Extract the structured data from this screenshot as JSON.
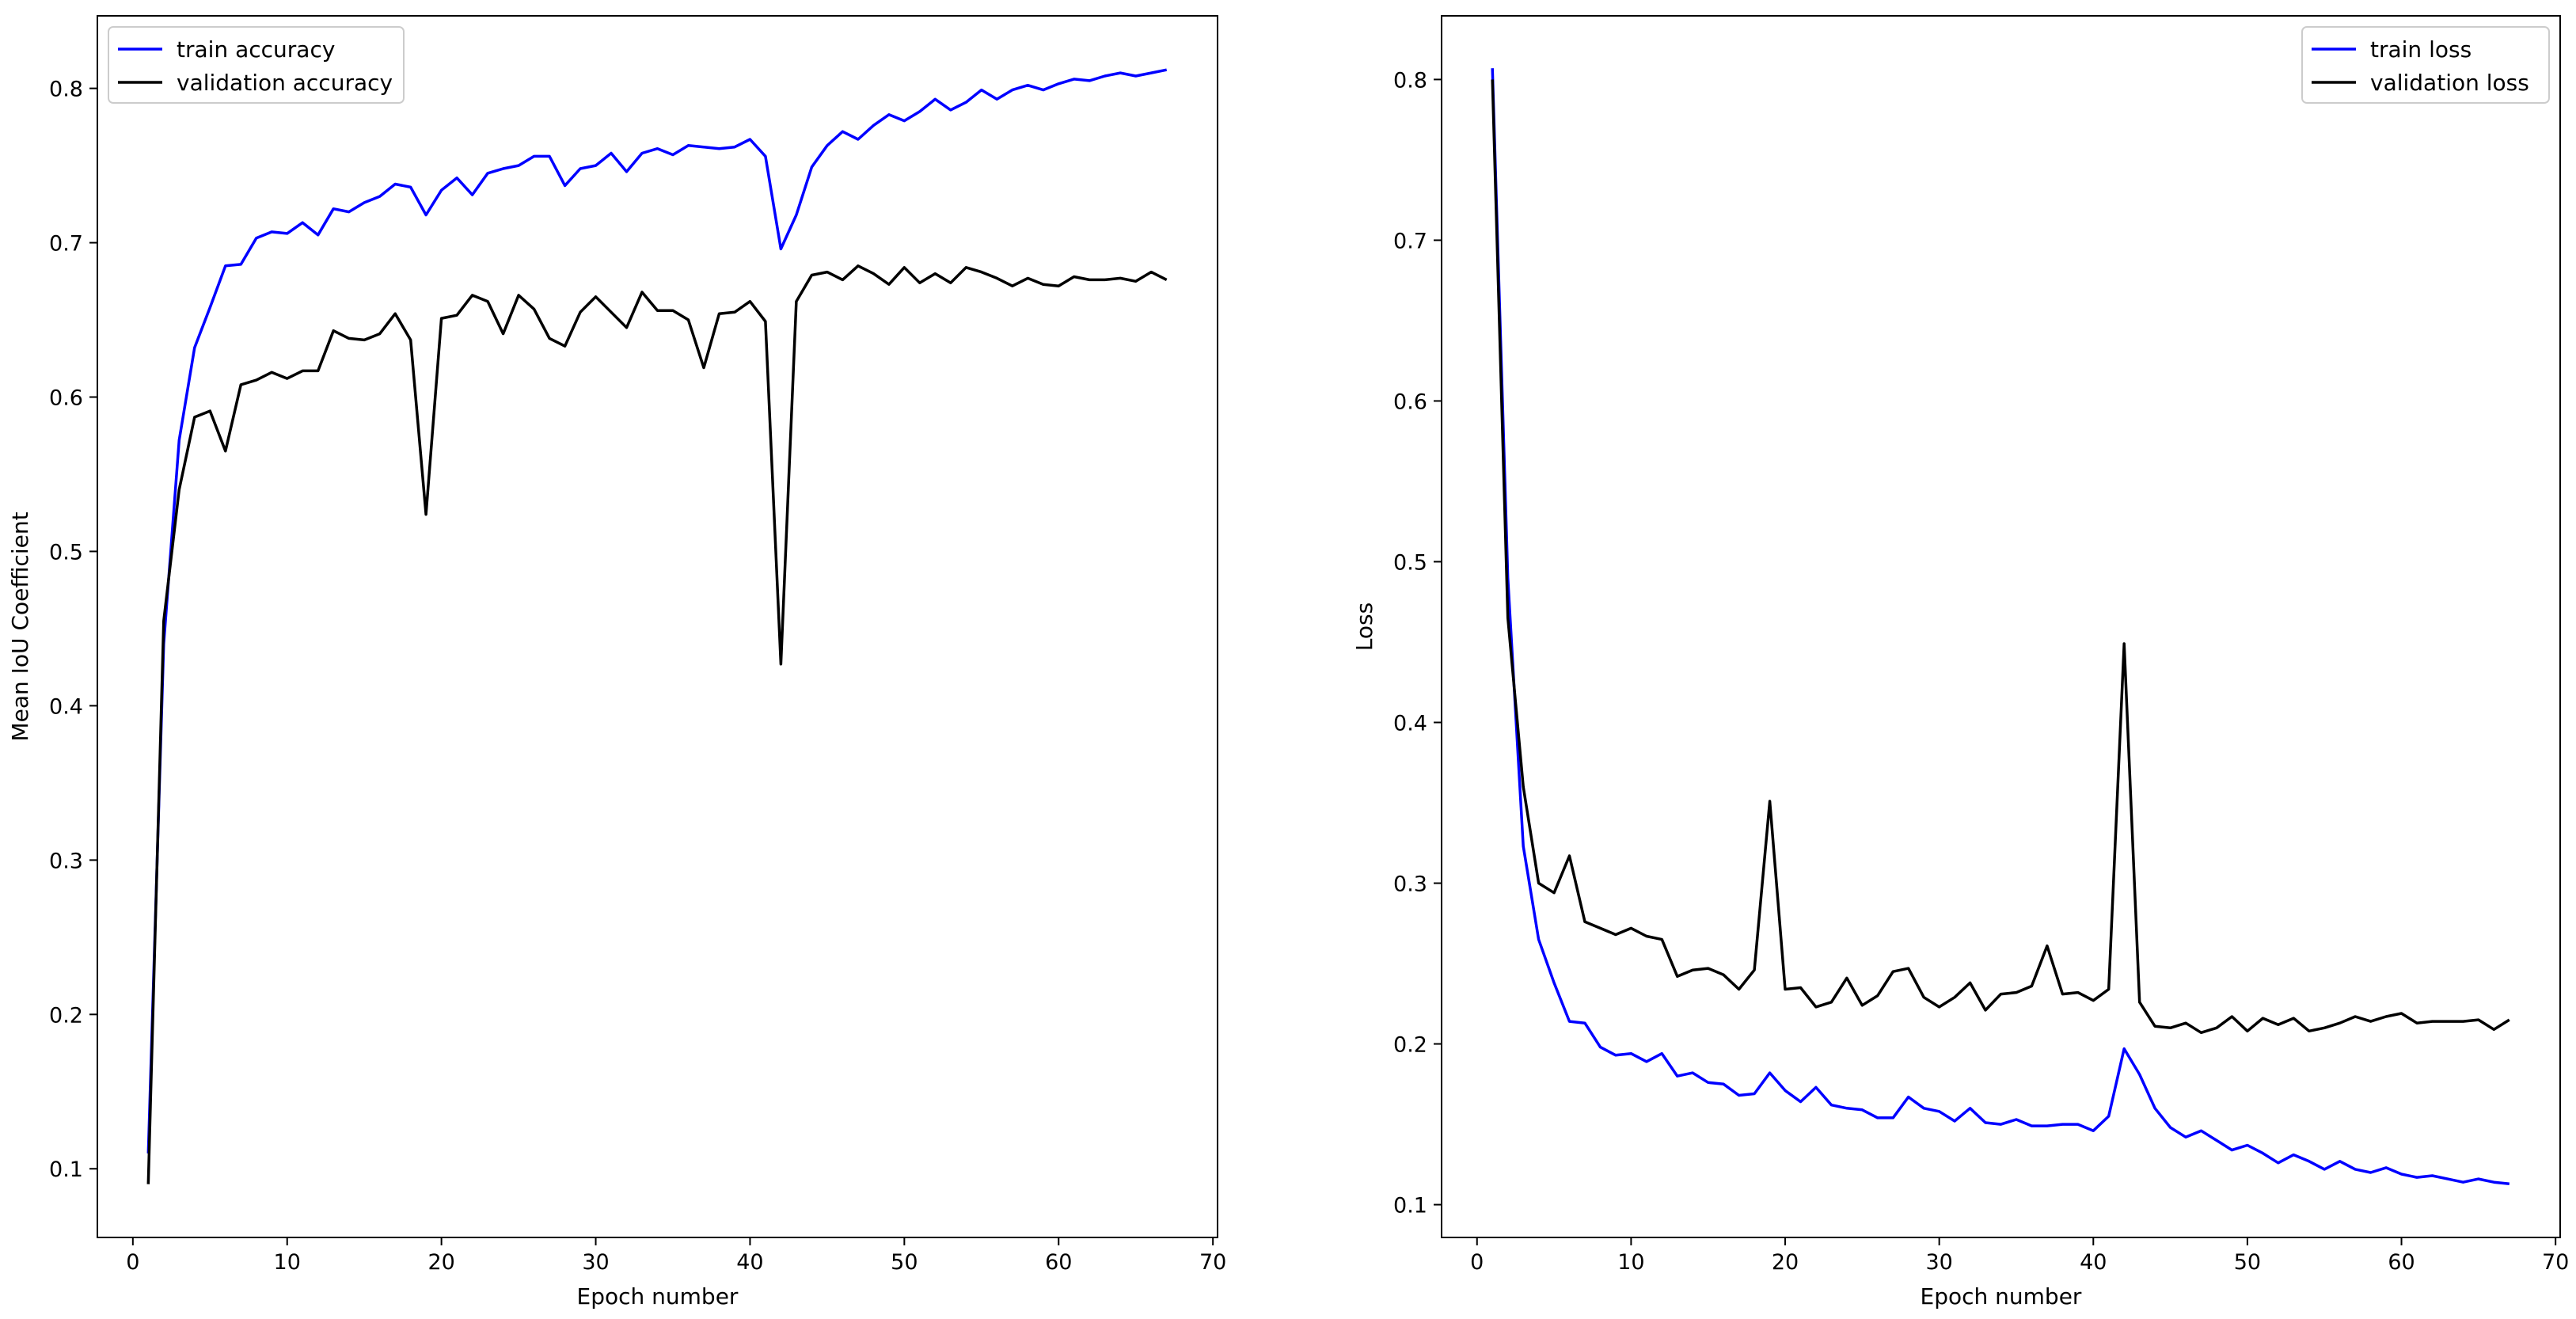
{
  "chart_data": [
    {
      "type": "line",
      "xlabel": "Epoch number",
      "ylabel": "Mean IoU Coefficient",
      "xlim": [
        -2.3,
        70.3
      ],
      "ylim": [
        0.0555,
        0.847
      ],
      "xticks": [
        0,
        10,
        20,
        30,
        40,
        50,
        60,
        70
      ],
      "yticks": [
        0.1,
        0.2,
        0.3,
        0.4,
        0.5,
        0.6,
        0.7,
        0.8
      ],
      "grid": false,
      "legend_position": "upper-left",
      "x": [
        1,
        2,
        3,
        4,
        5,
        6,
        7,
        8,
        9,
        10,
        11,
        12,
        13,
        14,
        15,
        16,
        17,
        18,
        19,
        20,
        21,
        22,
        23,
        24,
        25,
        26,
        27,
        28,
        29,
        30,
        31,
        32,
        33,
        34,
        35,
        36,
        37,
        38,
        39,
        40,
        41,
        42,
        43,
        44,
        45,
        46,
        47,
        48,
        49,
        50,
        51,
        52,
        53,
        54,
        55,
        56,
        57,
        58,
        59,
        60,
        61,
        62,
        63,
        64,
        65,
        66,
        67
      ],
      "series": [
        {
          "name": "train accuracy",
          "color": "#0000ff",
          "values": [
            0.11,
            0.44,
            0.572,
            0.632,
            0.658,
            0.685,
            0.686,
            0.703,
            0.707,
            0.706,
            0.713,
            0.705,
            0.722,
            0.72,
            0.726,
            0.73,
            0.738,
            0.736,
            0.718,
            0.734,
            0.742,
            0.731,
            0.745,
            0.748,
            0.75,
            0.756,
            0.756,
            0.737,
            0.748,
            0.75,
            0.758,
            0.746,
            0.758,
            0.761,
            0.757,
            0.763,
            0.762,
            0.761,
            0.762,
            0.767,
            0.756,
            0.696,
            0.718,
            0.749,
            0.763,
            0.772,
            0.767,
            0.776,
            0.783,
            0.779,
            0.785,
            0.793,
            0.786,
            0.791,
            0.799,
            0.793,
            0.799,
            0.802,
            0.799,
            0.803,
            0.806,
            0.805,
            0.808,
            0.81,
            0.808,
            0.81,
            0.812
          ]
        },
        {
          "name": "validation accuracy",
          "color": "#000000",
          "values": [
            0.09,
            0.455,
            0.54,
            0.587,
            0.591,
            0.565,
            0.608,
            0.611,
            0.616,
            0.612,
            0.617,
            0.617,
            0.643,
            0.638,
            0.637,
            0.641,
            0.654,
            0.637,
            0.524,
            0.651,
            0.653,
            0.666,
            0.662,
            0.641,
            0.666,
            0.657,
            0.638,
            0.633,
            0.655,
            0.665,
            0.655,
            0.645,
            0.668,
            0.656,
            0.656,
            0.65,
            0.619,
            0.654,
            0.655,
            0.662,
            0.649,
            0.427,
            0.662,
            0.679,
            0.681,
            0.676,
            0.685,
            0.68,
            0.673,
            0.684,
            0.674,
            0.68,
            0.674,
            0.684,
            0.681,
            0.677,
            0.672,
            0.677,
            0.673,
            0.672,
            0.678,
            0.676,
            0.676,
            0.677,
            0.675,
            0.681,
            0.676
          ]
        }
      ]
    },
    {
      "type": "line",
      "xlabel": "Epoch number",
      "ylabel": "Loss",
      "xlim": [
        -2.3,
        70.3
      ],
      "ylim": [
        0.0796,
        0.8396
      ],
      "xticks": [
        0,
        10,
        20,
        30,
        40,
        50,
        60,
        70
      ],
      "yticks": [
        0.1,
        0.2,
        0.3,
        0.4,
        0.5,
        0.6,
        0.7,
        0.8
      ],
      "grid": false,
      "legend_position": "upper-right",
      "x": [
        1,
        2,
        3,
        4,
        5,
        6,
        7,
        8,
        9,
        10,
        11,
        12,
        13,
        14,
        15,
        16,
        17,
        18,
        19,
        20,
        21,
        22,
        23,
        24,
        25,
        26,
        27,
        28,
        29,
        30,
        31,
        32,
        33,
        34,
        35,
        36,
        37,
        38,
        39,
        40,
        41,
        42,
        43,
        44,
        45,
        46,
        47,
        48,
        49,
        50,
        51,
        52,
        53,
        54,
        55,
        56,
        57,
        58,
        59,
        60,
        61,
        62,
        63,
        64,
        65,
        66,
        67
      ],
      "series": [
        {
          "name": "train loss",
          "color": "#0000ff",
          "values": [
            0.807,
            0.49,
            0.323,
            0.265,
            0.238,
            0.214,
            0.213,
            0.198,
            0.193,
            0.194,
            0.189,
            0.194,
            0.18,
            0.182,
            0.176,
            0.175,
            0.168,
            0.169,
            0.182,
            0.171,
            0.164,
            0.173,
            0.162,
            0.16,
            0.159,
            0.154,
            0.154,
            0.167,
            0.16,
            0.158,
            0.152,
            0.16,
            0.151,
            0.15,
            0.153,
            0.149,
            0.149,
            0.15,
            0.15,
            0.146,
            0.155,
            0.197,
            0.181,
            0.16,
            0.148,
            0.142,
            0.146,
            0.14,
            0.134,
            0.137,
            0.132,
            0.126,
            0.131,
            0.127,
            0.122,
            0.127,
            0.122,
            0.12,
            0.123,
            0.119,
            0.117,
            0.118,
            0.116,
            0.114,
            0.116,
            0.114,
            0.113
          ]
        },
        {
          "name": "validation loss",
          "color": "#000000",
          "values": [
            0.8,
            0.465,
            0.36,
            0.3,
            0.294,
            0.317,
            0.276,
            0.272,
            0.268,
            0.272,
            0.267,
            0.265,
            0.242,
            0.246,
            0.247,
            0.243,
            0.234,
            0.246,
            0.351,
            0.234,
            0.235,
            0.223,
            0.226,
            0.241,
            0.224,
            0.23,
            0.245,
            0.247,
            0.229,
            0.223,
            0.229,
            0.238,
            0.221,
            0.231,
            0.232,
            0.236,
            0.261,
            0.231,
            0.232,
            0.227,
            0.234,
            0.449,
            0.226,
            0.211,
            0.21,
            0.213,
            0.207,
            0.21,
            0.217,
            0.208,
            0.216,
            0.212,
            0.216,
            0.208,
            0.21,
            0.213,
            0.217,
            0.214,
            0.217,
            0.219,
            0.213,
            0.214,
            0.214,
            0.214,
            0.215,
            0.209,
            0.215
          ]
        }
      ]
    }
  ]
}
